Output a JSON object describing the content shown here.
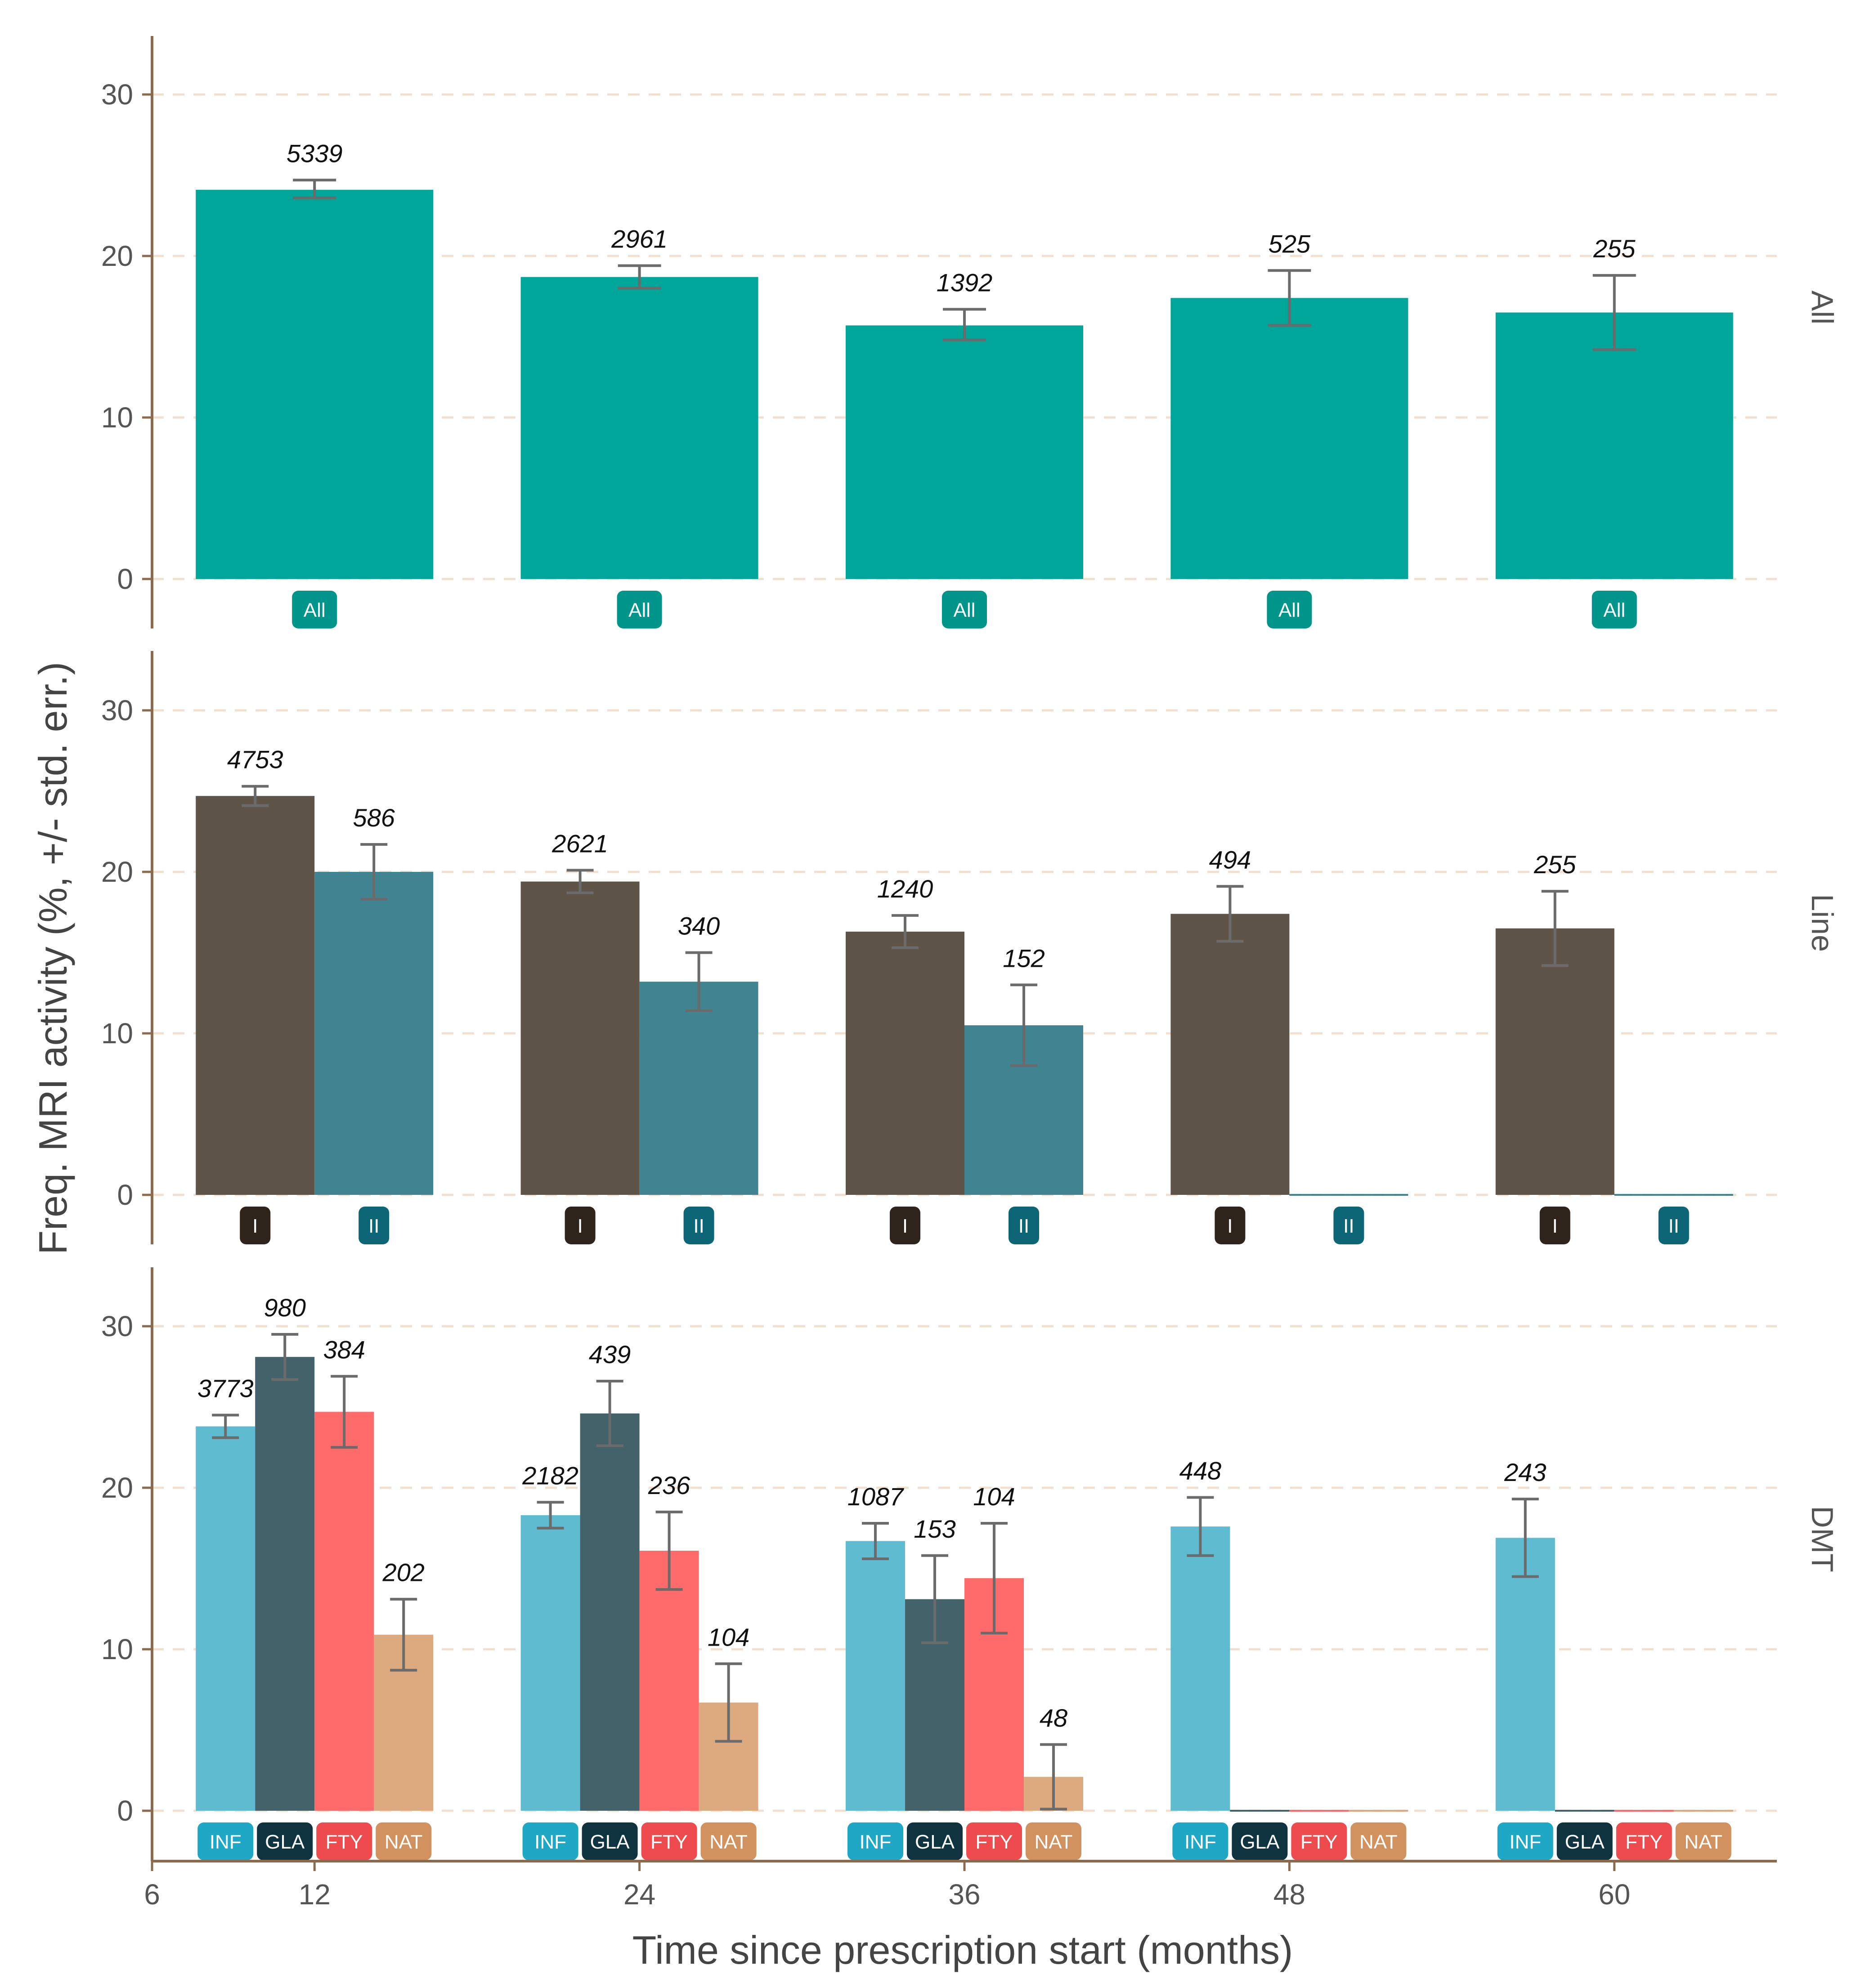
{
  "chart_data": {
    "type": "bar",
    "ylabel": "Freq. MRI activity (%, +/- std. err.)",
    "xlabel": "Time since prescription start (months)",
    "x_ticks": [
      "6",
      "12",
      "24",
      "36",
      "48",
      "60"
    ],
    "x_range": [
      6,
      66
    ],
    "ylim": [
      0,
      33
    ],
    "y_ticks": [
      "0",
      "10",
      "20",
      "30"
    ],
    "grid": "horizontal dashed",
    "colors": {
      "All": "#00a699",
      "I": "#5e5448",
      "II": "#3f8490",
      "INF": "#5fbcd0",
      "GLA": "#43626a",
      "FTY": "#ff6b6b",
      "NAT": "#dcaa7e",
      "badge_All": "#00958a",
      "badge_I": "#2e241b",
      "badge_II": "#0d6676",
      "badge_INF": "#1ea8c6",
      "badge_GLA": "#0f3440",
      "badge_FTY": "#ee4b4f",
      "badge_NAT": "#d2925f",
      "axis": "#8b6a4e",
      "grid": "#f1dfcf",
      "errorbar": "#6b6b6b"
    },
    "panels": [
      {
        "facet": "All",
        "categories": [
          12,
          24,
          36,
          48,
          60
        ],
        "series": [
          {
            "name": "All",
            "values": [
              24.1,
              18.7,
              15.7,
              17.4,
              16.5
            ],
            "err_low": [
              23.6,
              18.0,
              14.8,
              15.7,
              14.2
            ],
            "err_high": [
              24.7,
              19.4,
              16.7,
              19.1,
              18.8
            ],
            "counts": [
              "5339",
              "2961",
              "1392",
              "525",
              "255"
            ]
          }
        ]
      },
      {
        "facet": "Line",
        "categories": [
          12,
          24,
          36,
          48,
          60
        ],
        "series": [
          {
            "name": "I",
            "values": [
              24.7,
              19.4,
              16.3,
              17.4,
              16.5
            ],
            "err_low": [
              24.1,
              18.7,
              15.3,
              15.7,
              14.2
            ],
            "err_high": [
              25.3,
              20.1,
              17.3,
              19.1,
              18.8
            ],
            "counts": [
              "4753",
              "2621",
              "1240",
              "494",
              "255"
            ]
          },
          {
            "name": "II",
            "values": [
              20.0,
              13.2,
              10.5,
              0.0,
              0.0
            ],
            "err_low": [
              18.3,
              11.4,
              8.0,
              null,
              null
            ],
            "err_high": [
              21.7,
              15.0,
              13.0,
              null,
              null
            ],
            "counts": [
              "586",
              "340",
              "152",
              "",
              ""
            ]
          }
        ]
      },
      {
        "facet": "DMT",
        "categories": [
          12,
          24,
          36,
          48,
          60
        ],
        "series": [
          {
            "name": "INF",
            "values": [
              23.8,
              18.3,
              16.7,
              17.6,
              16.9
            ],
            "err_low": [
              23.1,
              17.5,
              15.6,
              15.8,
              14.5
            ],
            "err_high": [
              24.5,
              19.1,
              17.8,
              19.4,
              19.3
            ],
            "counts": [
              "3773",
              "2182",
              "1087",
              "448",
              "243"
            ]
          },
          {
            "name": "GLA",
            "values": [
              28.1,
              24.6,
              13.1,
              0.0,
              0.0
            ],
            "err_low": [
              26.7,
              22.6,
              10.4,
              null,
              null
            ],
            "err_high": [
              29.5,
              26.6,
              15.8,
              null,
              null
            ],
            "counts": [
              "980",
              "439",
              "153",
              "",
              ""
            ]
          },
          {
            "name": "FTY",
            "values": [
              24.7,
              16.1,
              14.4,
              0.0,
              0.0
            ],
            "err_low": [
              22.5,
              13.7,
              11.0,
              null,
              null
            ],
            "err_high": [
              26.9,
              18.5,
              17.8,
              null,
              null
            ],
            "counts": [
              "384",
              "236",
              "104",
              "",
              ""
            ]
          },
          {
            "name": "NAT",
            "values": [
              10.9,
              6.7,
              2.1,
              0.0,
              0.0
            ],
            "err_low": [
              8.7,
              4.3,
              0.1,
              null,
              null
            ],
            "err_high": [
              13.1,
              9.1,
              4.1,
              null,
              null
            ],
            "counts": [
              "202",
              "104",
              "48",
              "",
              ""
            ]
          }
        ]
      }
    ]
  }
}
